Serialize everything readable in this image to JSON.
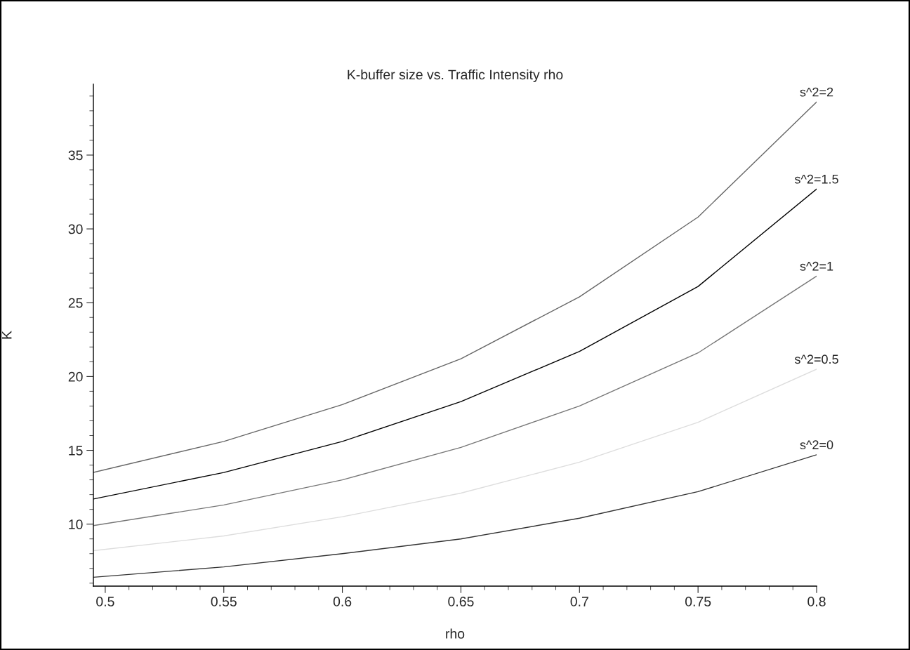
{
  "chart_data": {
    "type": "line",
    "title": "K-buffer size vs. Traffic Intensity rho",
    "xlabel": "rho",
    "ylabel": "K",
    "x": [
      0.495,
      0.55,
      0.6,
      0.65,
      0.7,
      0.75,
      0.8
    ],
    "series": [
      {
        "name": "s^2=2",
        "color": "#666666",
        "values": [
          13.5,
          15.6,
          18.1,
          21.2,
          25.4,
          30.8,
          38.6
        ]
      },
      {
        "name": "s^2=1.5",
        "color": "#000000",
        "values": [
          11.7,
          13.5,
          15.6,
          18.3,
          21.7,
          26.1,
          32.7
        ]
      },
      {
        "name": "s^2=1",
        "color": "#777777",
        "values": [
          9.9,
          11.3,
          13.0,
          15.2,
          18.0,
          21.6,
          26.8
        ]
      },
      {
        "name": "s^2=0.5",
        "color": "#dddddd",
        "values": [
          8.2,
          9.2,
          10.5,
          12.1,
          14.2,
          16.9,
          20.5
        ]
      },
      {
        "name": "s^2=0",
        "color": "#333333",
        "values": [
          6.4,
          7.1,
          8.0,
          9.0,
          10.4,
          12.2,
          14.7
        ]
      }
    ],
    "xlim": [
      0.495,
      0.8
    ],
    "ylim": [
      5.8,
      39.8
    ],
    "xticks": [
      0.5,
      {
        "value": 0.51,
        "label": null
      },
      {
        "value": 0.52,
        "label": null
      },
      {
        "value": 0.53,
        "label": null
      },
      {
        "value": 0.54,
        "label": null
      },
      0.55,
      {
        "value": 0.56,
        "label": null
      },
      {
        "value": 0.57,
        "label": null
      },
      {
        "value": 0.58,
        "label": null
      },
      {
        "value": 0.59,
        "label": null
      },
      0.6,
      {
        "value": 0.61,
        "label": null
      },
      {
        "value": 0.62,
        "label": null
      },
      {
        "value": 0.63,
        "label": null
      },
      {
        "value": 0.64,
        "label": null
      },
      0.65,
      {
        "value": 0.66,
        "label": null
      },
      {
        "value": 0.67,
        "label": null
      },
      {
        "value": 0.68,
        "label": null
      },
      {
        "value": 0.69,
        "label": null
      },
      0.7,
      {
        "value": 0.71,
        "label": null
      },
      {
        "value": 0.72,
        "label": null
      },
      {
        "value": 0.73,
        "label": null
      },
      {
        "value": 0.74,
        "label": null
      },
      0.75,
      {
        "value": 0.76,
        "label": null
      },
      {
        "value": 0.77,
        "label": null
      },
      {
        "value": 0.78,
        "label": null
      },
      {
        "value": 0.79,
        "label": null
      },
      0.8
    ],
    "yticks": [
      {
        "value": 6,
        "label": null
      },
      {
        "value": 7,
        "label": null
      },
      {
        "value": 8,
        "label": null
      },
      {
        "value": 9,
        "label": null
      },
      10,
      {
        "value": 11,
        "label": null
      },
      {
        "value": 12,
        "label": null
      },
      {
        "value": 13,
        "label": null
      },
      {
        "value": 14,
        "label": null
      },
      15,
      {
        "value": 16,
        "label": null
      },
      {
        "value": 17,
        "label": null
      },
      {
        "value": 18,
        "label": null
      },
      {
        "value": 19,
        "label": null
      },
      20,
      {
        "value": 21,
        "label": null
      },
      {
        "value": 22,
        "label": null
      },
      {
        "value": 23,
        "label": null
      },
      {
        "value": 24,
        "label": null
      },
      25,
      {
        "value": 26,
        "label": null
      },
      {
        "value": 27,
        "label": null
      },
      {
        "value": 28,
        "label": null
      },
      {
        "value": 29,
        "label": null
      },
      30,
      {
        "value": 31,
        "label": null
      },
      {
        "value": 32,
        "label": null
      },
      {
        "value": 33,
        "label": null
      },
      {
        "value": 34,
        "label": null
      },
      35,
      {
        "value": 36,
        "label": null
      },
      {
        "value": 37,
        "label": null
      },
      {
        "value": 38,
        "label": null
      },
      {
        "value": 39,
        "label": null
      }
    ],
    "grid": false,
    "legend": false
  }
}
